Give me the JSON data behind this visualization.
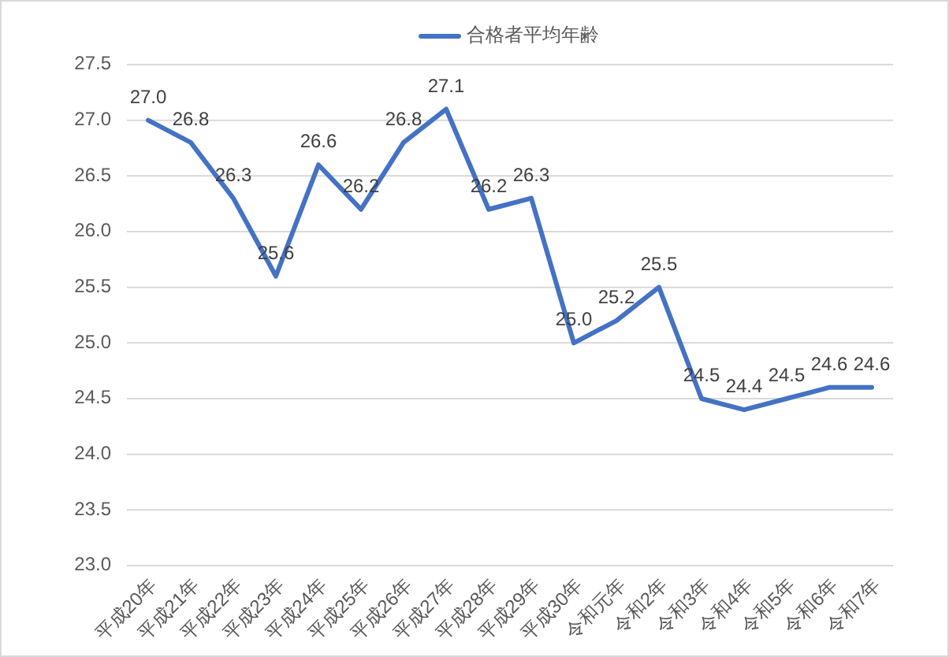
{
  "chart_data": {
    "type": "line",
    "categories": [
      "平成20年",
      "平成21年",
      "平成22年",
      "平成23年",
      "平成24年",
      "平成25年",
      "平成26年",
      "平成27年",
      "平成28年",
      "平成29年",
      "平成30年",
      "令和元年",
      "令和2年",
      "令和3年",
      "令和4年",
      "令和5年",
      "令和6年",
      "令和7年"
    ],
    "series": [
      {
        "name": "合格者平均年齢",
        "color": "#4472c4",
        "values": [
          27.0,
          26.8,
          26.3,
          25.6,
          26.6,
          26.2,
          26.8,
          27.1,
          26.2,
          26.3,
          25.0,
          25.2,
          25.5,
          24.5,
          24.4,
          24.5,
          24.6,
          24.6
        ],
        "value_labels": [
          "27.0",
          "26.8",
          "26.3",
          "25.6",
          "26.6",
          "26.2",
          "26.8",
          "27.1",
          "26.2",
          "26.3",
          "25.0",
          "25.2",
          "25.5",
          "24.5",
          "24.4",
          "24.5",
          "24.6",
          "24.6"
        ]
      }
    ],
    "ylim": [
      23.0,
      27.5
    ],
    "yticks": [
      {
        "value": 23.0,
        "label": "23.0"
      },
      23.5,
      {
        "value": 24.0,
        "label": "24.0"
      },
      24.5,
      {
        "value": 25.0,
        "label": "25.0"
      },
      25.5,
      {
        "value": 26.0,
        "label": "26.0"
      },
      26.5,
      {
        "value": 27.0,
        "label": "27.0"
      },
      27.5
    ],
    "grid": "y",
    "legend": "top"
  }
}
